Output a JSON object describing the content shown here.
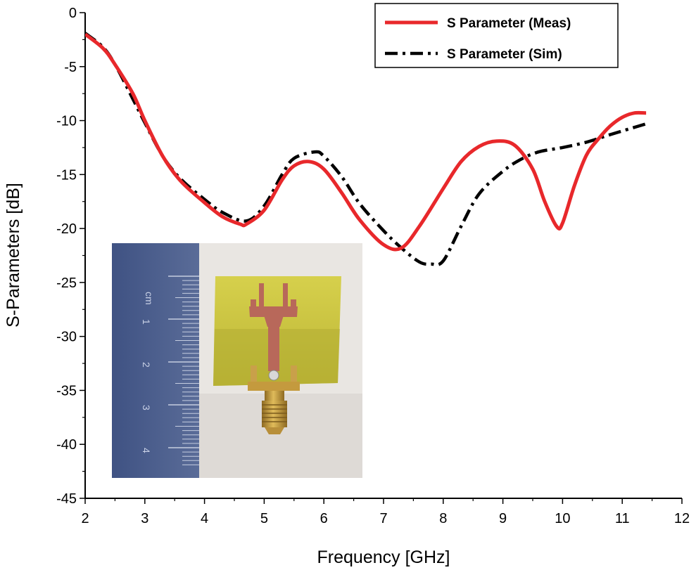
{
  "chart_data": {
    "type": "line",
    "title": "",
    "xlabel": "Frequency [GHz]",
    "ylabel": "S-Parameters [dB]",
    "xlim": [
      2,
      12
    ],
    "ylim": [
      -45,
      0
    ],
    "xticks": [
      2,
      3,
      4,
      5,
      6,
      7,
      8,
      9,
      10,
      11,
      12
    ],
    "yticks": [
      0,
      -5,
      -10,
      -15,
      -20,
      -25,
      -30,
      -35,
      -40,
      -45
    ],
    "xtick_labels": [
      "2",
      "3",
      "4",
      "5",
      "6",
      "7",
      "8",
      "9",
      "10",
      "11",
      "12"
    ],
    "ytick_labels": [
      "0",
      "-5",
      "-10",
      "-15",
      "-20",
      "-25",
      "-30",
      "-35",
      "-40",
      "-45"
    ],
    "legend_position": "top-right",
    "series": [
      {
        "name": "S Parameter (Meas)",
        "color": "#e8282b",
        "style": "solid",
        "x": [
          2.0,
          2.3,
          2.5,
          2.8,
          3.0,
          3.3,
          3.6,
          4.0,
          4.3,
          4.6,
          4.7,
          5.0,
          5.3,
          5.5,
          5.75,
          6.0,
          6.3,
          6.6,
          7.0,
          7.3,
          7.6,
          8.0,
          8.3,
          8.6,
          8.9,
          9.2,
          9.5,
          9.7,
          9.9,
          10.0,
          10.2,
          10.4,
          10.6,
          10.8,
          11.0,
          11.2,
          11.4
        ],
        "y": [
          -2.0,
          -3.3,
          -4.8,
          -7.5,
          -10.0,
          -13.3,
          -15.6,
          -17.6,
          -18.9,
          -19.6,
          -19.6,
          -18.3,
          -15.5,
          -14.2,
          -13.8,
          -14.5,
          -16.7,
          -19.2,
          -21.5,
          -21.8,
          -19.8,
          -16.3,
          -13.8,
          -12.4,
          -11.9,
          -12.3,
          -14.5,
          -17.5,
          -19.8,
          -19.5,
          -16.0,
          -13.2,
          -11.7,
          -10.5,
          -9.7,
          -9.3,
          -9.3
        ]
      },
      {
        "name": "S Parameter (Sim)",
        "color": "#000000",
        "style": "dashdot",
        "x": [
          2.0,
          2.3,
          2.5,
          2.8,
          3.0,
          3.3,
          3.6,
          4.0,
          4.3,
          4.7,
          5.0,
          5.3,
          5.5,
          5.85,
          6.0,
          6.3,
          6.6,
          7.0,
          7.3,
          7.6,
          7.8,
          8.0,
          8.3,
          8.6,
          9.0,
          9.3,
          9.6,
          10.0,
          10.4,
          10.8,
          11.1,
          11.4
        ],
        "y": [
          -1.9,
          -3.2,
          -4.8,
          -8.0,
          -10.2,
          -13.3,
          -15.4,
          -17.3,
          -18.5,
          -19.3,
          -17.9,
          -15.0,
          -13.5,
          -12.9,
          -13.3,
          -15.2,
          -17.7,
          -20.2,
          -21.8,
          -23.1,
          -23.3,
          -23.0,
          -19.8,
          -16.8,
          -14.7,
          -13.6,
          -12.9,
          -12.5,
          -12.0,
          -11.3,
          -10.8,
          -10.3
        ]
      }
    ]
  },
  "inset": {
    "ruler_numbers": [
      "cm",
      "1",
      "2",
      "3",
      "4"
    ],
    "colors": {
      "ruler": "#4f6290",
      "background": "#e9e6e2",
      "substrate": "#c9c43f",
      "copper": "#b8685a",
      "connector": "#c49a3e"
    }
  }
}
